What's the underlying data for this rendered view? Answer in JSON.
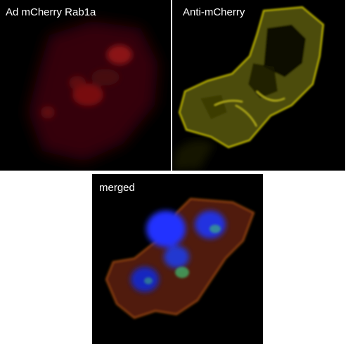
{
  "panels": [
    {
      "label": "Ad mCherry Rab1a",
      "channel_color": "#d01010"
    },
    {
      "label": "Anti-mCherry",
      "channel_color": "#c8c000"
    },
    {
      "label": "merged",
      "channel_color": "#2030ff"
    }
  ]
}
